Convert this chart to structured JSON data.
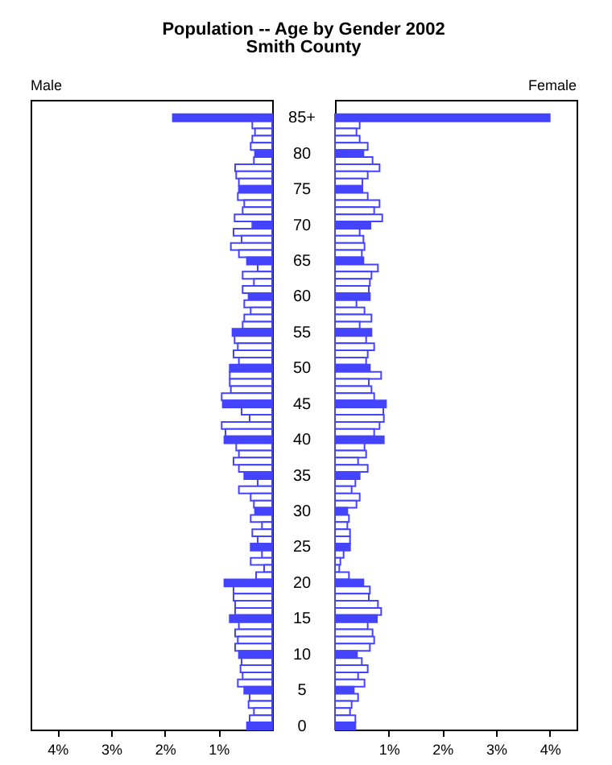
{
  "chart_data": [
    {
      "type": "bar",
      "orientation": "horizontal",
      "title": "Population -- Age by Gender 2002",
      "subtitle": "Smith County",
      "annotations": [
        "Male"
      ],
      "categories": [
        "85+",
        null,
        null,
        null,
        null,
        "80",
        null,
        null,
        null,
        null,
        "75",
        null,
        null,
        null,
        null,
        "70",
        null,
        null,
        null,
        null,
        "65",
        null,
        null,
        null,
        null,
        "60",
        null,
        null,
        null,
        null,
        "55",
        null,
        null,
        null,
        null,
        "50",
        null,
        null,
        null,
        null,
        "45",
        null,
        null,
        null,
        null,
        "40",
        null,
        null,
        null,
        null,
        "35",
        null,
        null,
        null,
        null,
        "30",
        null,
        null,
        null,
        null,
        "25",
        null,
        null,
        null,
        null,
        "20",
        null,
        null,
        null,
        null,
        "15",
        null,
        null,
        null,
        null,
        "10",
        null,
        null,
        null,
        null,
        "5",
        null,
        null,
        null,
        null,
        "0"
      ],
      "values": [
        1.85,
        0.37,
        0.32,
        0.37,
        0.4,
        0.32,
        0.34,
        0.69,
        0.67,
        0.62,
        0.62,
        0.64,
        0.52,
        0.55,
        0.7,
        0.37,
        0.72,
        0.57,
        0.77,
        0.62,
        0.47,
        0.27,
        0.55,
        0.34,
        0.55,
        0.44,
        0.52,
        0.4,
        0.52,
        0.55,
        0.74,
        0.7,
        0.64,
        0.72,
        0.62,
        0.79,
        0.79,
        0.79,
        0.77,
        0.94,
        0.92,
        0.57,
        0.42,
        0.94,
        0.87,
        0.89,
        0.67,
        0.62,
        0.72,
        0.62,
        0.52,
        0.27,
        0.62,
        0.4,
        0.34,
        0.32,
        0.4,
        0.19,
        0.37,
        0.27,
        0.4,
        0.19,
        0.4,
        0.15,
        0.3,
        0.89,
        0.72,
        0.72,
        0.69,
        0.69,
        0.79,
        0.62,
        0.69,
        0.64,
        0.69,
        0.62,
        0.57,
        0.59,
        0.55,
        0.64,
        0.52,
        0.42,
        0.44,
        0.34,
        0.42,
        0.47
      ],
      "color": "#4444ff",
      "colors": [
        "#4444ff",
        "#ffffff",
        "#ffffff",
        "#ffffff",
        "#ffffff",
        "#4444ff",
        "#ffffff",
        "#ffffff",
        "#ffffff",
        "#ffffff",
        "#4444ff",
        "#ffffff",
        "#ffffff",
        "#ffffff",
        "#ffffff",
        "#4444ff",
        "#ffffff",
        "#ffffff",
        "#ffffff",
        "#ffffff",
        "#4444ff",
        "#ffffff",
        "#ffffff",
        "#ffffff",
        "#ffffff",
        "#4444ff",
        "#ffffff",
        "#ffffff",
        "#ffffff",
        "#ffffff",
        "#4444ff",
        "#ffffff",
        "#ffffff",
        "#ffffff",
        "#ffffff",
        "#4444ff",
        "#ffffff",
        "#ffffff",
        "#ffffff",
        "#ffffff",
        "#4444ff",
        "#ffffff",
        "#ffffff",
        "#ffffff",
        "#ffffff",
        "#4444ff",
        "#ffffff",
        "#ffffff",
        "#ffffff",
        "#ffffff",
        "#4444ff",
        "#ffffff",
        "#ffffff",
        "#ffffff",
        "#ffffff",
        "#4444ff",
        "#ffffff",
        "#ffffff",
        "#ffffff",
        "#ffffff",
        "#4444ff",
        "#ffffff",
        "#ffffff",
        "#ffffff",
        "#ffffff",
        "#4444ff",
        "#ffffff",
        "#ffffff",
        "#ffffff",
        "#ffffff",
        "#4444ff",
        "#ffffff",
        "#ffffff",
        "#ffffff",
        "#ffffff",
        "#4444ff",
        "#ffffff",
        "#ffffff",
        "#ffffff",
        "#ffffff",
        "#4444ff",
        "#ffffff",
        "#ffffff",
        "#ffffff",
        "#ffffff",
        "#4444ff"
      ],
      "xlim": [
        4.5,
        0
      ],
      "xticks": [
        {
          "value": 4,
          "label": "4%"
        },
        {
          "value": 3,
          "label": "3%"
        },
        {
          "value": 2,
          "label": "2%"
        },
        {
          "value": 1,
          "label": "1%"
        }
      ]
    },
    {
      "type": "bar",
      "orientation": "horizontal",
      "annotations": [
        "Female"
      ],
      "values": [
        4.0,
        0.46,
        0.4,
        0.46,
        0.61,
        0.53,
        0.7,
        0.83,
        0.61,
        0.51,
        0.51,
        0.61,
        0.83,
        0.73,
        0.88,
        0.66,
        0.46,
        0.53,
        0.55,
        0.5,
        0.53,
        0.8,
        0.68,
        0.65,
        0.63,
        0.65,
        0.4,
        0.55,
        0.68,
        0.46,
        0.68,
        0.58,
        0.73,
        0.61,
        0.58,
        0.65,
        0.86,
        0.63,
        0.68,
        0.73,
        0.95,
        0.9,
        0.91,
        0.83,
        0.73,
        0.91,
        0.55,
        0.58,
        0.43,
        0.61,
        0.46,
        0.38,
        0.31,
        0.46,
        0.4,
        0.23,
        0.26,
        0.23,
        0.28,
        0.28,
        0.28,
        0.16,
        0.1,
        0.08,
        0.26,
        0.53,
        0.65,
        0.63,
        0.8,
        0.86,
        0.78,
        0.61,
        0.7,
        0.73,
        0.65,
        0.41,
        0.5,
        0.61,
        0.43,
        0.55,
        0.35,
        0.43,
        0.31,
        0.28,
        0.38,
        0.38
      ],
      "color": "#4444ff",
      "colors": [
        "#4444ff",
        "#ffffff",
        "#ffffff",
        "#ffffff",
        "#ffffff",
        "#4444ff",
        "#ffffff",
        "#ffffff",
        "#ffffff",
        "#ffffff",
        "#4444ff",
        "#ffffff",
        "#ffffff",
        "#ffffff",
        "#ffffff",
        "#4444ff",
        "#ffffff",
        "#ffffff",
        "#ffffff",
        "#ffffff",
        "#4444ff",
        "#ffffff",
        "#ffffff",
        "#ffffff",
        "#ffffff",
        "#4444ff",
        "#ffffff",
        "#ffffff",
        "#ffffff",
        "#ffffff",
        "#4444ff",
        "#ffffff",
        "#ffffff",
        "#ffffff",
        "#ffffff",
        "#4444ff",
        "#ffffff",
        "#ffffff",
        "#ffffff",
        "#ffffff",
        "#4444ff",
        "#ffffff",
        "#ffffff",
        "#ffffff",
        "#ffffff",
        "#4444ff",
        "#ffffff",
        "#ffffff",
        "#ffffff",
        "#ffffff",
        "#4444ff",
        "#ffffff",
        "#ffffff",
        "#ffffff",
        "#ffffff",
        "#4444ff",
        "#ffffff",
        "#ffffff",
        "#ffffff",
        "#ffffff",
        "#4444ff",
        "#ffffff",
        "#ffffff",
        "#ffffff",
        "#ffffff",
        "#4444ff",
        "#ffffff",
        "#ffffff",
        "#ffffff",
        "#ffffff",
        "#4444ff",
        "#ffffff",
        "#ffffff",
        "#ffffff",
        "#ffffff",
        "#4444ff",
        "#ffffff",
        "#ffffff",
        "#ffffff",
        "#ffffff",
        "#4444ff",
        "#ffffff",
        "#ffffff",
        "#ffffff",
        "#ffffff",
        "#4444ff"
      ],
      "xlim": [
        0,
        4.5
      ],
      "xticks": [
        {
          "value": 1,
          "label": "1%"
        },
        {
          "value": 2,
          "label": "2%"
        },
        {
          "value": 3,
          "label": "3%"
        },
        {
          "value": 4,
          "label": "4%"
        }
      ]
    }
  ]
}
